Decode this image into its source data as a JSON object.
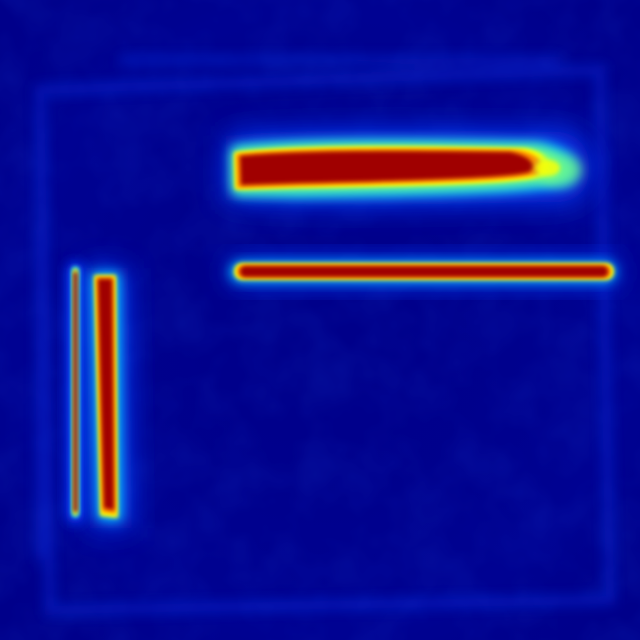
{
  "image": {
    "kind": "heatmap-visualization",
    "colormap": "jet",
    "colors": {
      "background": "#00008a",
      "low_glow": "#0a3cff",
      "mid_glow": "#00c8ff",
      "mid_high": "#7dff7a",
      "high": "#ffff00",
      "orange": "#ff8a00",
      "peak": "#a00000"
    },
    "regions": [
      {
        "name": "thick-horizontal-band",
        "intensity": 1.0
      },
      {
        "name": "thin-horizontal-band",
        "intensity": 1.0
      },
      {
        "name": "left-thin-vertical-band",
        "intensity": 1.0
      },
      {
        "name": "right-vertical-band",
        "intensity": 1.0
      }
    ]
  }
}
